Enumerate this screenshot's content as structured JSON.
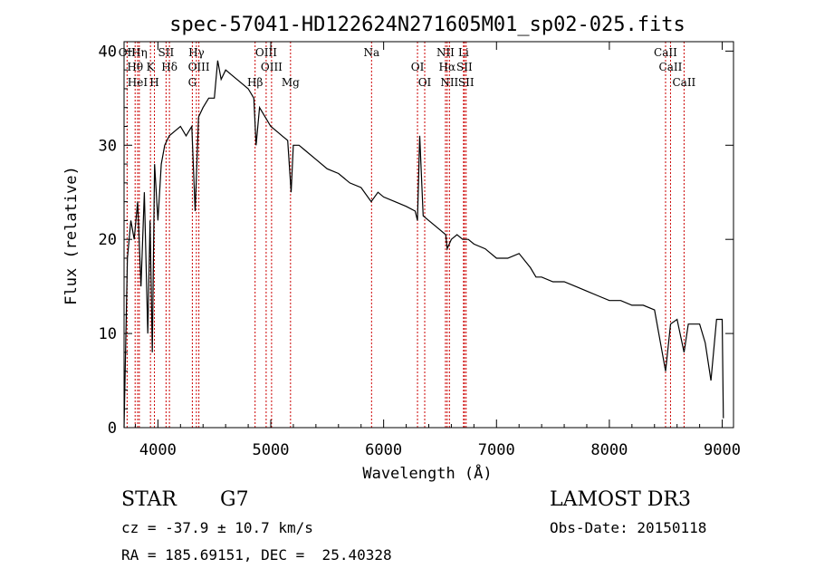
{
  "chart_data": {
    "type": "line",
    "title": "spec-57041-HD122624N271605M01_sp02-025.fits",
    "xlabel": "Wavelength (Å)",
    "ylabel": "Flux (relative)",
    "xlim": [
      3700,
      9100
    ],
    "ylim": [
      0,
      41
    ],
    "xticks": [
      4000,
      5000,
      6000,
      7000,
      8000,
      9000
    ],
    "yticks": [
      0,
      10,
      20,
      30,
      40
    ],
    "grid": false,
    "series": [
      {
        "name": "flux",
        "x": [
          3700,
          3730,
          3760,
          3790,
          3820,
          3850,
          3880,
          3910,
          3930,
          3950,
          3970,
          4000,
          4030,
          4060,
          4100,
          4150,
          4200,
          4250,
          4300,
          4330,
          4360,
          4400,
          4450,
          4500,
          4530,
          4560,
          4600,
          4650,
          4700,
          4750,
          4800,
          4850,
          4870,
          4900,
          4950,
          5000,
          5050,
          5100,
          5150,
          5180,
          5200,
          5250,
          5300,
          5400,
          5500,
          5600,
          5700,
          5800,
          5890,
          5950,
          6000,
          6100,
          6200,
          6280,
          6300,
          6320,
          6350,
          6400,
          6450,
          6500,
          6550,
          6563,
          6600,
          6650,
          6700,
          6750,
          6800,
          6900,
          7000,
          7100,
          7200,
          7300,
          7350,
          7400,
          7500,
          7600,
          7700,
          7800,
          7900,
          8000,
          8100,
          8200,
          8300,
          8400,
          8498,
          8542,
          8600,
          8662,
          8700,
          8800,
          8850,
          8900,
          8950,
          9000,
          9010
        ],
        "y": [
          0,
          18,
          22,
          20,
          24,
          15,
          25,
          10,
          22,
          8,
          28,
          22,
          28,
          30,
          31,
          31.5,
          32,
          31,
          32,
          23,
          33,
          34,
          35,
          35,
          39,
          37,
          38,
          37.5,
          37,
          36.5,
          36,
          35,
          30,
          34,
          33,
          32,
          31.5,
          31,
          30.5,
          25,
          30,
          30,
          29.5,
          28.5,
          27.5,
          27,
          26,
          25.5,
          24,
          25,
          24.5,
          24,
          23.5,
          23,
          22,
          31,
          22.5,
          22,
          21.5,
          21,
          20.5,
          19,
          20,
          20.5,
          20,
          20,
          19.5,
          19,
          18,
          18,
          18.5,
          17,
          16,
          16,
          15.5,
          15.5,
          15,
          14.5,
          14,
          13.5,
          13.5,
          13,
          13,
          12.5,
          6,
          11,
          11.5,
          8,
          11,
          11,
          9,
          5,
          11.5,
          11.5,
          1
        ]
      }
    ],
    "spectral_lines": [
      {
        "label": "OII",
        "x": 3727
      },
      {
        "label": "Hθ",
        "x": 3798
      },
      {
        "label": "HeI",
        "x": 3820
      },
      {
        "label": "Hη",
        "x": 3835
      },
      {
        "label": "K",
        "x": 3934
      },
      {
        "label": "H",
        "x": 3969
      },
      {
        "label": "Hδ",
        "x": 4102
      },
      {
        "label": "SII",
        "x": 4072
      },
      {
        "label": "G",
        "x": 4305
      },
      {
        "label": "Hγ",
        "x": 4341
      },
      {
        "label": "OIII",
        "x": 4363
      },
      {
        "label": "Hβ",
        "x": 4861
      },
      {
        "label": "OIII",
        "x": 4959
      },
      {
        "label": "OIII",
        "x": 5007
      },
      {
        "label": "Mg",
        "x": 5175
      },
      {
        "label": "Na",
        "x": 5893
      },
      {
        "label": "OI",
        "x": 6300
      },
      {
        "label": "OI",
        "x": 6364
      },
      {
        "label": "NII",
        "x": 6548
      },
      {
        "label": "Hα",
        "x": 6563
      },
      {
        "label": "NII",
        "x": 6583
      },
      {
        "label": "Li",
        "x": 6708
      },
      {
        "label": "SII",
        "x": 6716
      },
      {
        "label": "SII",
        "x": 6731
      },
      {
        "label": "CaII",
        "x": 8498
      },
      {
        "label": "CaII",
        "x": 8542
      },
      {
        "label": "CaII",
        "x": 8662
      }
    ]
  },
  "info": {
    "class": "STAR",
    "subclass": "G7",
    "survey": "LAMOST DR3",
    "cz": "cz = -37.9 ± 10.7 km/s",
    "obs_date": "Obs-Date: 20150118",
    "coords": "RA = 185.69151, DEC =  25.40328"
  },
  "colors": {
    "line": "#000000",
    "marker": "#cc0000",
    "background": "#ffffff"
  }
}
